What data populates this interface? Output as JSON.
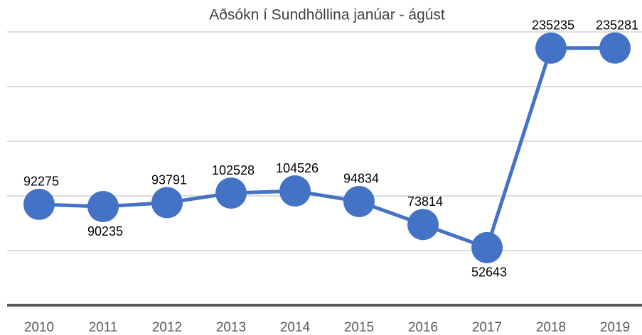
{
  "chart_data": {
    "type": "line",
    "title": "Aðsókn í Sundhöllina janúar - ágúst",
    "categories": [
      "2010",
      "2011",
      "2012",
      "2013",
      "2014",
      "2015",
      "2016",
      "2017",
      "2018",
      "2019"
    ],
    "values": [
      92275,
      90235,
      93791,
      102528,
      104526,
      94834,
      73814,
      52643,
      235235,
      235281
    ],
    "color": "#4472c4",
    "ylim": [
      0,
      250000
    ],
    "yticks": [
      0,
      50000,
      100000,
      150000,
      200000,
      250000
    ],
    "grid": true
  }
}
